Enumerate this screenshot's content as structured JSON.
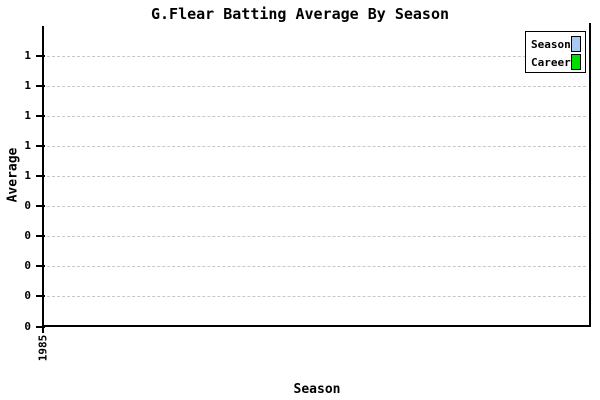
{
  "chart_data": {
    "type": "line",
    "title": "G.Flear Batting Average By Season",
    "xlabel": "Season",
    "ylabel": "Average",
    "x_tick_labels": [
      "1985"
    ],
    "y_tick_labels_top_to_bottom": [
      "1",
      "1",
      "1",
      "1",
      "1",
      "0",
      "0",
      "0",
      "0",
      "0"
    ],
    "series": [
      {
        "name": "Season",
        "color": "#a6caf0",
        "values": []
      },
      {
        "name": "Career",
        "color": "#00dd00",
        "values": []
      }
    ],
    "grid": "horizontal-dashed",
    "legend_position": "top-right",
    "colors": {
      "background": "#ffffff",
      "axis": "#000000",
      "gridline": "#c8c8c8",
      "text": "#000000"
    }
  }
}
